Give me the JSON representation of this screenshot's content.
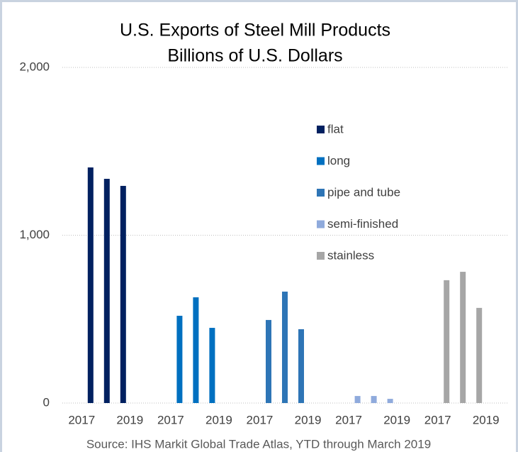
{
  "chart_data": {
    "type": "bar",
    "title": "U.S. Exports of Steel Mill Products",
    "subtitle": "Billions of U.S. Dollars",
    "categories": [
      "2017",
      null,
      "2019"
    ],
    "series": [
      {
        "name": "flat",
        "color": "#002060",
        "values": [
          1404,
          1336,
          1294
        ]
      },
      {
        "name": "long",
        "color": "#0070c0",
        "values": [
          520,
          630,
          448
        ]
      },
      {
        "name": "pipe and tube",
        "color": "#2e75b6",
        "values": [
          495,
          664,
          440
        ]
      },
      {
        "name": "semi-finished",
        "color": "#8faadc",
        "values": [
          42,
          42,
          25
        ]
      },
      {
        "name": "stainless",
        "color": "#a6a6a6",
        "values": [
          732,
          782,
          567
        ]
      }
    ],
    "ylim": [
      0,
      2000
    ],
    "yticks": [
      0,
      {
        "value": 1000,
        "label": "1,000"
      },
      {
        "value": 2000,
        "label": "2,000"
      }
    ],
    "grid": true,
    "legend": "upper right",
    "source": "Source: IHS Markit Global Trade Atlas, YTD through March 2019"
  }
}
